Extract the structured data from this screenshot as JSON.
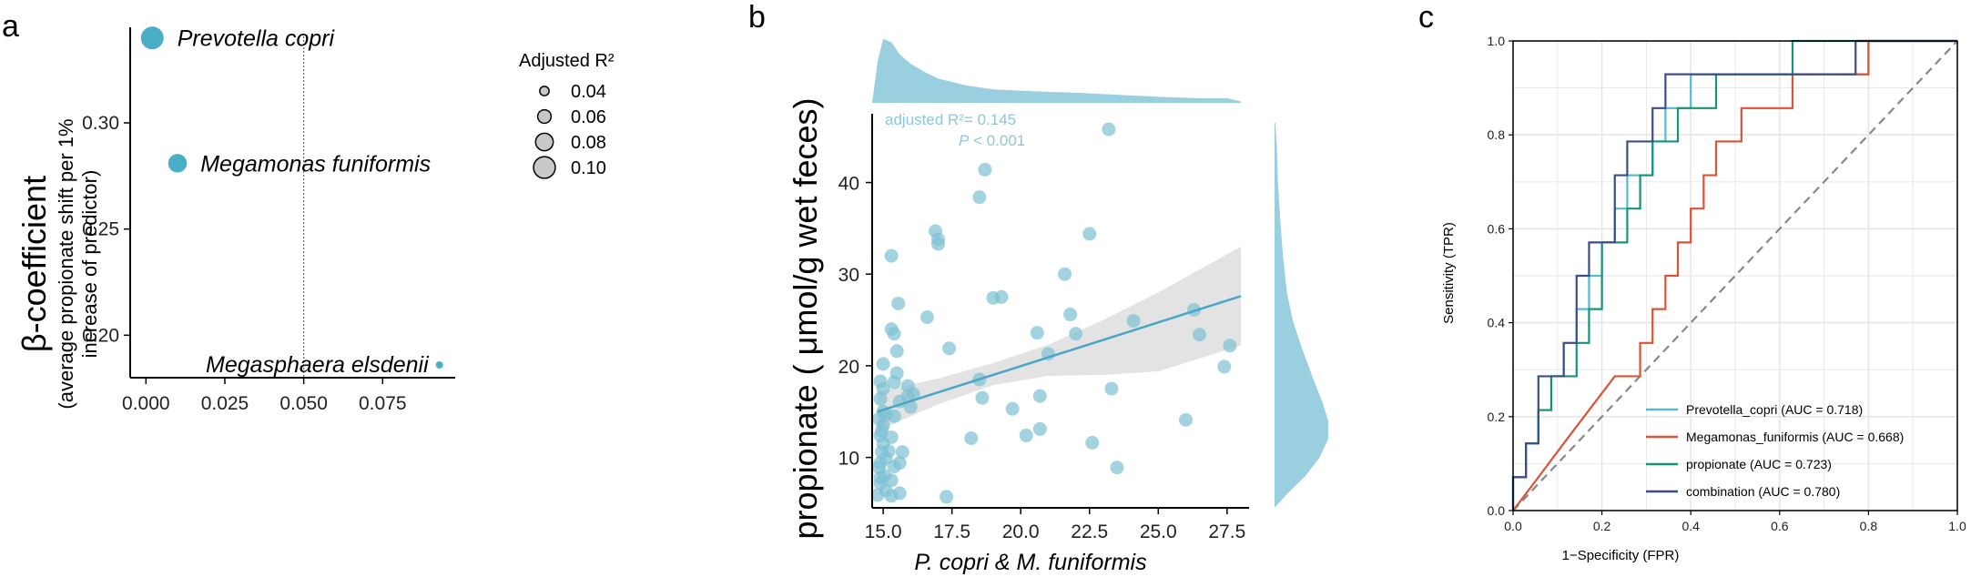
{
  "colors": {
    "point_teal": "#4AAFC6",
    "scatter_point": "#7EC1D3",
    "density_fill": "#9ACFDF",
    "reg_line": "#4AA6C6",
    "ci_band": "#D9D9D9",
    "legend_circle": "#C8C8C8",
    "roc_prevotella": "#56B9D3",
    "roc_megamonas": "#D95337",
    "roc_propionate": "#18937A",
    "roc_combination": "#3C4E85",
    "diagonal": "#888888",
    "grid": "#E6E6E6"
  },
  "chart_data": [
    {
      "panel": "a",
      "type": "scatter",
      "panel_label": "a",
      "ylabel": "β-coefficient",
      "ylabel_sub1": "(average propionate shift per 1%",
      "ylabel_sub2": "increase of predictor)",
      "xlim": [
        -0.005,
        0.098
      ],
      "ylim": [
        0.18,
        0.345
      ],
      "x_ticks": [
        0.0,
        0.025,
        0.05,
        0.075
      ],
      "x_tick_labels": [
        "0.000",
        "0.025",
        "0.050",
        "0.075"
      ],
      "y_ticks": [
        0.2,
        0.25,
        0.3
      ],
      "y_tick_labels": [
        "0.20",
        "0.25",
        "0.30"
      ],
      "vline_x": 0.05,
      "points": [
        {
          "label": "Prevotella copri",
          "x": 0.002,
          "y": 0.34,
          "r2": 0.105
        },
        {
          "label": "Megamonas funiformis",
          "x": 0.01,
          "y": 0.281,
          "r2": 0.085
        },
        {
          "label": "Megasphaera elsdenii",
          "x": 0.093,
          "y": 0.186,
          "r2": 0.03
        }
      ],
      "legend": {
        "title": "Adjusted R²",
        "values": [
          0.04,
          0.06,
          0.08,
          0.1
        ],
        "labels": [
          "0.04",
          "0.06",
          "0.08",
          "0.10"
        ]
      }
    },
    {
      "panel": "b",
      "type": "scatter",
      "panel_label": "b",
      "xlabel": "P. copri & M. funiformis",
      "ylabel": "propionate ( μmol/g wet feces)",
      "xlim": [
        14.6,
        28.3
      ],
      "ylim": [
        4.5,
        47.5
      ],
      "x_ticks": [
        15,
        17.5,
        20,
        22.5,
        25,
        27.5
      ],
      "x_tick_labels": [
        "15.0",
        "17.5",
        "20.0",
        "22.5",
        "25.0",
        "27.5"
      ],
      "y_ticks": [
        10,
        20,
        30,
        40
      ],
      "y_tick_labels": [
        "10",
        "20",
        "30",
        "40"
      ],
      "annotation_r2": "adjusted R²= 0.145",
      "annotation_p_italic": "P",
      "annotation_p_rest": " < 0.001",
      "regression": {
        "x0": 14.8,
        "y0": 15.0,
        "x1": 28.0,
        "y1": 27.6
      },
      "ci": {
        "lower": [
          [
            14.8,
            12.9
          ],
          [
            17,
            15.8
          ],
          [
            19,
            17.9
          ],
          [
            21,
            18.9
          ],
          [
            23,
            19.0
          ],
          [
            25,
            19.4
          ],
          [
            28,
            22.2
          ]
        ],
        "upper": [
          [
            14.8,
            17.2
          ],
          [
            17,
            18.6
          ],
          [
            19,
            20.3
          ],
          [
            21,
            22.3
          ],
          [
            23,
            25.0
          ],
          [
            25,
            28.0
          ],
          [
            28,
            33.0
          ]
        ]
      },
      "points": [
        [
          14.8,
          5.9
        ],
        [
          14.9,
          7.2
        ],
        [
          14.85,
          8.9
        ],
        [
          14.9,
          9.4
        ],
        [
          14.95,
          10.6
        ],
        [
          15.0,
          11.5
        ],
        [
          14.9,
          12.4
        ],
        [
          15.0,
          13.5
        ],
        [
          14.85,
          14.2
        ],
        [
          15.0,
          15.0
        ],
        [
          14.9,
          16.4
        ],
        [
          15.0,
          17.5
        ],
        [
          14.9,
          18.3
        ],
        [
          15.0,
          20.2
        ],
        [
          14.9,
          7.8
        ],
        [
          15.1,
          6.4
        ],
        [
          15.05,
          8.0
        ],
        [
          15.1,
          9.9
        ],
        [
          14.95,
          12.9
        ],
        [
          15.1,
          14.7
        ],
        [
          15.2,
          10.7
        ],
        [
          15.3,
          5.8
        ],
        [
          15.3,
          7.5
        ],
        [
          15.4,
          9.0
        ],
        [
          15.3,
          12.2
        ],
        [
          15.4,
          14.5
        ],
        [
          15.6,
          16.1
        ],
        [
          15.4,
          18.2
        ],
        [
          15.5,
          19.2
        ],
        [
          15.5,
          21.6
        ],
        [
          15.4,
          23.5
        ],
        [
          15.3,
          24.0
        ],
        [
          15.3,
          32.0
        ],
        [
          15.55,
          26.8
        ],
        [
          15.6,
          9.4
        ],
        [
          15.6,
          6.1
        ],
        [
          15.7,
          10.6
        ],
        [
          15.9,
          17.8
        ],
        [
          15.9,
          16.7
        ],
        [
          16.0,
          15.5
        ],
        [
          16.1,
          16.9
        ],
        [
          16.6,
          25.3
        ],
        [
          16.9,
          34.7
        ],
        [
          17.0,
          33.8
        ],
        [
          17.0,
          33.3
        ],
        [
          17.3,
          5.7
        ],
        [
          17.4,
          21.9
        ],
        [
          18.2,
          12.1
        ],
        [
          18.5,
          18.5
        ],
        [
          18.6,
          16.5
        ],
        [
          18.5,
          38.4
        ],
        [
          18.7,
          41.4
        ],
        [
          19.0,
          27.4
        ],
        [
          19.3,
          27.5
        ],
        [
          19.7,
          15.3
        ],
        [
          20.2,
          12.4
        ],
        [
          20.6,
          23.6
        ],
        [
          20.7,
          16.7
        ],
        [
          20.7,
          13.1
        ],
        [
          21.0,
          21.3
        ],
        [
          21.6,
          30.0
        ],
        [
          21.8,
          25.6
        ],
        [
          22.0,
          23.5
        ],
        [
          22.5,
          34.4
        ],
        [
          22.6,
          11.6
        ],
        [
          23.2,
          45.8
        ],
        [
          23.3,
          17.5
        ],
        [
          23.5,
          8.9
        ],
        [
          24.1,
          24.9
        ],
        [
          26.0,
          14.1
        ],
        [
          26.3,
          26.1
        ],
        [
          26.5,
          23.4
        ],
        [
          27.4,
          19.9
        ],
        [
          27.6,
          22.2
        ]
      ],
      "top_density": [
        [
          14.6,
          0.0
        ],
        [
          14.8,
          0.62
        ],
        [
          15.0,
          0.95
        ],
        [
          15.3,
          0.9
        ],
        [
          15.6,
          0.72
        ],
        [
          16.0,
          0.58
        ],
        [
          16.5,
          0.46
        ],
        [
          17.0,
          0.36
        ],
        [
          18.0,
          0.26
        ],
        [
          19.0,
          0.2
        ],
        [
          20.5,
          0.17
        ],
        [
          22.0,
          0.15
        ],
        [
          23.5,
          0.12
        ],
        [
          25.0,
          0.09
        ],
        [
          26.5,
          0.07
        ],
        [
          27.5,
          0.07
        ],
        [
          28.0,
          0.02
        ]
      ],
      "right_density": [
        [
          4.5,
          0.0
        ],
        [
          6.0,
          0.22
        ],
        [
          8.0,
          0.55
        ],
        [
          10.0,
          0.8
        ],
        [
          12.0,
          0.95
        ],
        [
          14.0,
          0.95
        ],
        [
          16.0,
          0.85
        ],
        [
          18.0,
          0.72
        ],
        [
          20.0,
          0.6
        ],
        [
          22.0,
          0.48
        ],
        [
          25.0,
          0.32
        ],
        [
          28.0,
          0.22
        ],
        [
          32.0,
          0.15
        ],
        [
          36.0,
          0.1
        ],
        [
          40.0,
          0.06
        ],
        [
          44.0,
          0.04
        ],
        [
          46.5,
          0.015
        ]
      ]
    },
    {
      "panel": "c",
      "type": "line",
      "panel_label": "c",
      "xlabel": "1−Specificity (FPR)",
      "ylabel": "Sensitivity (TPR)",
      "xlim": [
        0,
        1
      ],
      "ylim": [
        0,
        1
      ],
      "x_ticks": [
        0,
        0.2,
        0.4,
        0.6,
        0.8,
        1.0
      ],
      "x_tick_labels": [
        "0.0",
        "0.2",
        "0.4",
        "0.6",
        "0.8",
        "1.0"
      ],
      "y_ticks": [
        0,
        0.2,
        0.4,
        0.6,
        0.8,
        1.0
      ],
      "y_tick_labels": [
        "0.0",
        "0.2",
        "0.4",
        "0.6",
        "0.8",
        "1.0"
      ],
      "series": [
        {
          "name": "Prevotella_copri (AUC = 0.718)",
          "key": "roc_prevotella",
          "points": [
            [
              0,
              0
            ],
            [
              0,
              0.071
            ],
            [
              0.029,
              0.071
            ],
            [
              0.029,
              0.143
            ],
            [
              0.057,
              0.143
            ],
            [
              0.057,
              0.214
            ],
            [
              0.086,
              0.214
            ],
            [
              0.086,
              0.286
            ],
            [
              0.114,
              0.286
            ],
            [
              0.114,
              0.357
            ],
            [
              0.143,
              0.357
            ],
            [
              0.143,
              0.429
            ],
            [
              0.171,
              0.429
            ],
            [
              0.171,
              0.5
            ],
            [
              0.2,
              0.5
            ],
            [
              0.2,
              0.571
            ],
            [
              0.229,
              0.571
            ],
            [
              0.229,
              0.643
            ],
            [
              0.257,
              0.643
            ],
            [
              0.257,
              0.714
            ],
            [
              0.314,
              0.714
            ],
            [
              0.314,
              0.786
            ],
            [
              0.343,
              0.786
            ],
            [
              0.343,
              0.857
            ],
            [
              0.4,
              0.857
            ],
            [
              0.4,
              0.929
            ],
            [
              0.8,
              0.929
            ],
            [
              0.8,
              1.0
            ],
            [
              1.0,
              1.0
            ]
          ]
        },
        {
          "name": "Megamonas_funiformis (AUC = 0.668)",
          "key": "roc_megamonas",
          "points": [
            [
              0,
              0
            ],
            [
              0.057,
              0.071
            ],
            [
              0.114,
              0.143
            ],
            [
              0.171,
              0.214
            ],
            [
              0.229,
              0.286
            ],
            [
              0.286,
              0.286
            ],
            [
              0.286,
              0.357
            ],
            [
              0.314,
              0.357
            ],
            [
              0.314,
              0.429
            ],
            [
              0.343,
              0.429
            ],
            [
              0.343,
              0.5
            ],
            [
              0.371,
              0.5
            ],
            [
              0.371,
              0.571
            ],
            [
              0.4,
              0.571
            ],
            [
              0.4,
              0.643
            ],
            [
              0.429,
              0.643
            ],
            [
              0.429,
              0.714
            ],
            [
              0.457,
              0.714
            ],
            [
              0.457,
              0.786
            ],
            [
              0.514,
              0.786
            ],
            [
              0.514,
              0.857
            ],
            [
              0.629,
              0.857
            ],
            [
              0.629,
              0.929
            ],
            [
              0.8,
              0.929
            ],
            [
              0.8,
              1.0
            ],
            [
              1.0,
              1.0
            ]
          ]
        },
        {
          "name": "propionate (AUC = 0.723)",
          "key": "roc_propionate",
          "points": [
            [
              0,
              0
            ],
            [
              0,
              0.071
            ],
            [
              0.029,
              0.071
            ],
            [
              0.029,
              0.143
            ],
            [
              0.057,
              0.143
            ],
            [
              0.057,
              0.214
            ],
            [
              0.086,
              0.214
            ],
            [
              0.086,
              0.286
            ],
            [
              0.143,
              0.286
            ],
            [
              0.143,
              0.357
            ],
            [
              0.171,
              0.357
            ],
            [
              0.171,
              0.429
            ],
            [
              0.2,
              0.429
            ],
            [
              0.2,
              0.5
            ],
            [
              0.2,
              0.571
            ],
            [
              0.257,
              0.571
            ],
            [
              0.257,
              0.643
            ],
            [
              0.286,
              0.643
            ],
            [
              0.286,
              0.714
            ],
            [
              0.314,
              0.714
            ],
            [
              0.314,
              0.786
            ],
            [
              0.371,
              0.786
            ],
            [
              0.371,
              0.857
            ],
            [
              0.457,
              0.857
            ],
            [
              0.457,
              0.929
            ],
            [
              0.629,
              0.929
            ],
            [
              0.629,
              1.0
            ],
            [
              1.0,
              1.0
            ]
          ]
        },
        {
          "name": "combination (AUC = 0.780)",
          "key": "roc_combination",
          "points": [
            [
              0,
              0
            ],
            [
              0,
              0.071
            ],
            [
              0.029,
              0.071
            ],
            [
              0.029,
              0.143
            ],
            [
              0.057,
              0.143
            ],
            [
              0.057,
              0.214
            ],
            [
              0.057,
              0.286
            ],
            [
              0.114,
              0.286
            ],
            [
              0.114,
              0.357
            ],
            [
              0.143,
              0.357
            ],
            [
              0.143,
              0.429
            ],
            [
              0.143,
              0.5
            ],
            [
              0.171,
              0.5
            ],
            [
              0.171,
              0.571
            ],
            [
              0.229,
              0.571
            ],
            [
              0.229,
              0.643
            ],
            [
              0.229,
              0.714
            ],
            [
              0.257,
              0.714
            ],
            [
              0.257,
              0.786
            ],
            [
              0.314,
              0.786
            ],
            [
              0.314,
              0.857
            ],
            [
              0.343,
              0.857
            ],
            [
              0.343,
              0.929
            ],
            [
              0.771,
              0.929
            ],
            [
              0.771,
              1.0
            ],
            [
              0.971,
              1.0
            ],
            [
              1.0,
              1.0
            ]
          ]
        }
      ]
    }
  ]
}
